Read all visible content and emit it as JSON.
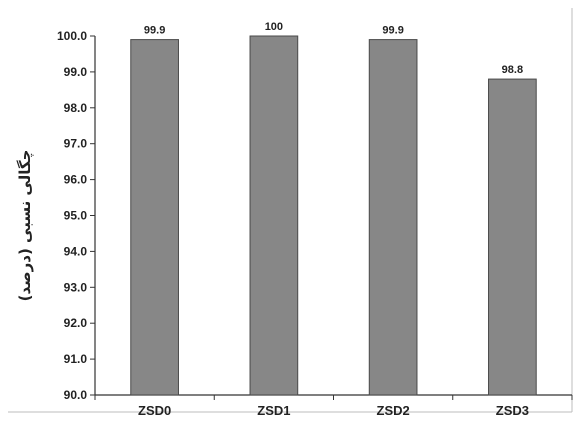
{
  "chart_data": {
    "type": "bar",
    "categories": [
      "ZSD0",
      "ZSD1",
      "ZSD2",
      "ZSD3"
    ],
    "values": [
      99.9,
      100.0,
      99.9,
      98.8
    ],
    "data_labels": [
      "99.9",
      "100",
      "99.9",
      "98.8"
    ],
    "ylabel": "چگالی نسبی (درصد)",
    "xlabel": "",
    "ylim": [
      90.0,
      100.0
    ],
    "y_ticks": [
      "90.0",
      "91.0",
      "92.0",
      "93.0",
      "94.0",
      "95.0",
      "96.0",
      "97.0",
      "98.0",
      "99.0",
      "100.0"
    ],
    "grid": false,
    "legend": "none",
    "colors": {
      "bar_fill": "#878787",
      "bar_stroke": "#4a4a4a",
      "axis": "#333333",
      "frame": "#bdbdbd"
    }
  }
}
